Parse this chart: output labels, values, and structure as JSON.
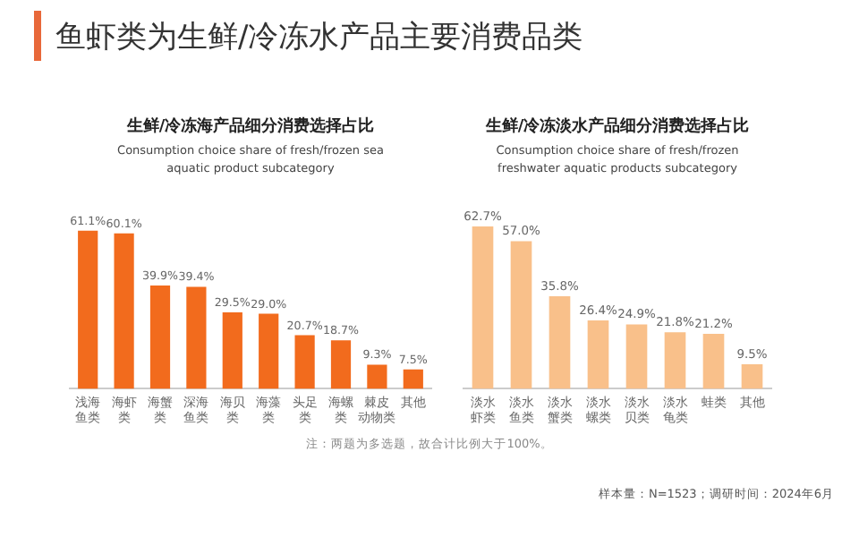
{
  "chart_data": [
    {
      "type": "other",
      "title": "鱼虾类为生鲜/冷冻水产品主要消费品类",
      "annotations": [
        "注：两题为多选题，故合计比例大于100%。",
        "样本量：N=1523；调研时间：2024年6月"
      ]
    },
    {
      "type": "bar",
      "title": "生鲜/冷冻海产品细分消费选择占比",
      "subtitle": "Consumption choice share of fresh/frozen sea aquatic product subcategory",
      "categories": [
        "浅海鱼类",
        "海虾类",
        "海蟹类",
        "深海鱼类",
        "海贝类",
        "海藻类",
        "头足类",
        "海螺类",
        "棘皮动物类",
        "其他"
      ],
      "values": [
        61.1,
        60.1,
        39.9,
        39.4,
        29.5,
        29.0,
        20.7,
        18.7,
        9.3,
        7.5
      ],
      "value_labels": [
        "61.1%",
        "60.1%",
        "39.9%",
        "39.4%",
        "29.5%",
        "29.0%",
        "20.7%",
        "18.7%",
        "9.3%",
        "7.5%"
      ],
      "color": "#f26b1d",
      "tick_labels": "x",
      "grid": false
    },
    {
      "type": "bar",
      "title": "生鲜/冷冻淡水产品细分消费选择占比",
      "subtitle": "Consumption choice share of fresh/frozen freshwater aquatic products subcategory",
      "categories": [
        "淡水虾类",
        "淡水鱼类",
        "淡水蟹类",
        "淡水螺类",
        "淡水贝类",
        "淡水龟类",
        "蛙类",
        "其他"
      ],
      "values": [
        62.7,
        57.0,
        35.8,
        26.4,
        24.9,
        21.8,
        21.2,
        9.5
      ],
      "value_labels": [
        "62.7%",
        "57.0%",
        "35.8%",
        "26.4%",
        "24.9%",
        "21.8%",
        "21.2%",
        "9.5%"
      ],
      "color": "#f9c08a",
      "tick_labels": "x",
      "grid": false
    }
  ]
}
